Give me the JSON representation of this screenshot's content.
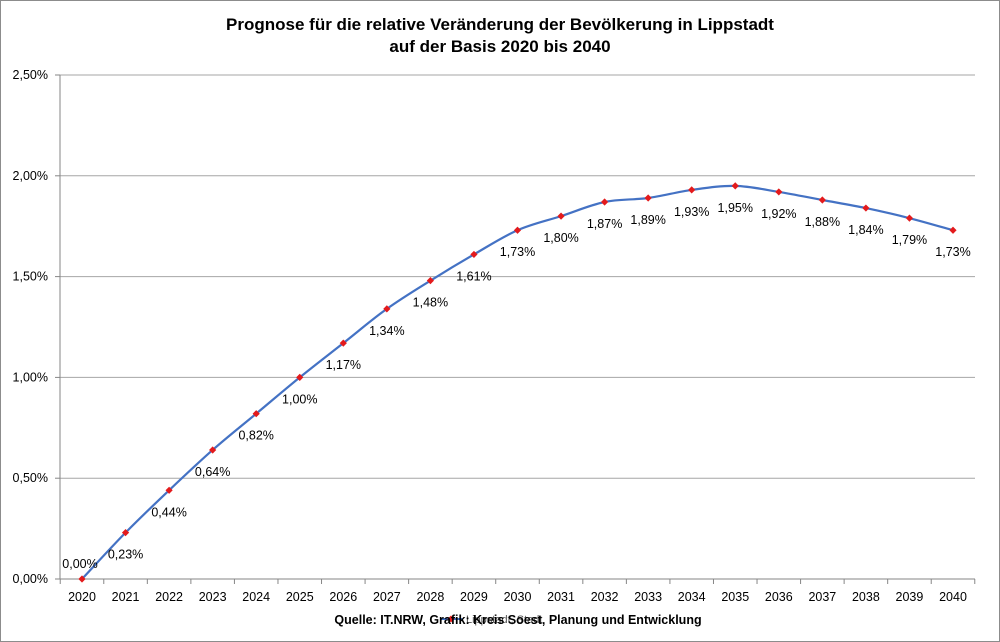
{
  "chart_data": {
    "type": "line",
    "title_line1": "Prognose für die relative Veränderung der Bevölkerung in Lippstadt",
    "title_line2": "auf der Basis 2020 bis 2040",
    "source": "Quelle: IT.NRW, Grafik: Kreis Soest, Planung und Entwicklung",
    "ylim": [
      0,
      2.5
    ],
    "y_ticks": [
      {
        "value": 0,
        "label": "0,00%"
      },
      {
        "value": 0.5,
        "label": "0,50%"
      },
      {
        "value": 1.0,
        "label": "1,00%"
      },
      {
        "value": 1.5,
        "label": "1,50%"
      },
      {
        "value": 2.0,
        "label": "2,00%"
      },
      {
        "value": 2.5,
        "label": "2,50%"
      }
    ],
    "grid": true,
    "legend_position": "bottom-center",
    "line_color": "#4472C4",
    "marker_color": "#E31A1C",
    "series": [
      {
        "name": "Lippstadt, Stadt",
        "points": [
          {
            "x": "2020",
            "y": 0.0,
            "label": "0,00%"
          },
          {
            "x": "2021",
            "y": 0.23,
            "label": "0,23%"
          },
          {
            "x": "2022",
            "y": 0.44,
            "label": "0,44%"
          },
          {
            "x": "2023",
            "y": 0.64,
            "label": "0,64%"
          },
          {
            "x": "2024",
            "y": 0.82,
            "label": "0,82%"
          },
          {
            "x": "2025",
            "y": 1.0,
            "label": "1,00%"
          },
          {
            "x": "2026",
            "y": 1.17,
            "label": "1,17%"
          },
          {
            "x": "2027",
            "y": 1.34,
            "label": "1,34%"
          },
          {
            "x": "2028",
            "y": 1.48,
            "label": "1,48%"
          },
          {
            "x": "2029",
            "y": 1.61,
            "label": "1,61%"
          },
          {
            "x": "2030",
            "y": 1.73,
            "label": "1,73%"
          },
          {
            "x": "2031",
            "y": 1.8,
            "label": "1,80%"
          },
          {
            "x": "2032",
            "y": 1.87,
            "label": "1,87%"
          },
          {
            "x": "2033",
            "y": 1.89,
            "label": "1,89%"
          },
          {
            "x": "2034",
            "y": 1.93,
            "label": "1,93%"
          },
          {
            "x": "2035",
            "y": 1.95,
            "label": "1,95%"
          },
          {
            "x": "2036",
            "y": 1.92,
            "label": "1,92%"
          },
          {
            "x": "2037",
            "y": 1.88,
            "label": "1,88%"
          },
          {
            "x": "2038",
            "y": 1.84,
            "label": "1,84%"
          },
          {
            "x": "2039",
            "y": 1.79,
            "label": "1,79%"
          },
          {
            "x": "2040",
            "y": 1.73,
            "label": "1,73%"
          }
        ]
      }
    ]
  }
}
